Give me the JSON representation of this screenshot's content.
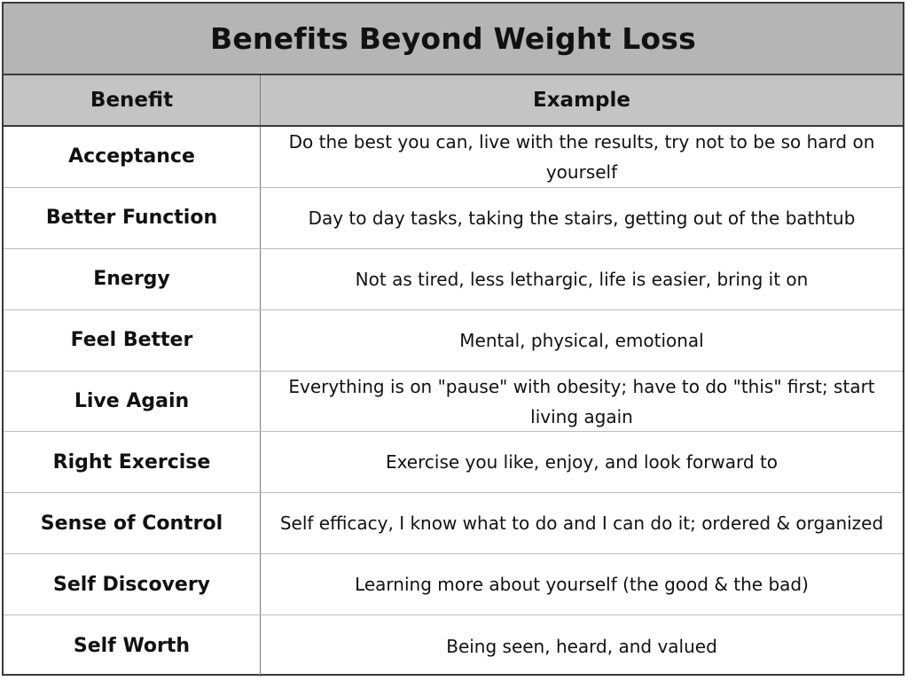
{
  "table": {
    "title": "Benefits Beyond Weight Loss",
    "columns": {
      "benefit": "Benefit",
      "example": "Example"
    },
    "rows": [
      {
        "benefit": "Acceptance",
        "example": "Do the best you can, live with the results, try not to be so hard on yourself"
      },
      {
        "benefit": "Better Function",
        "example": "Day to day tasks, taking the stairs, getting out of the bathtub"
      },
      {
        "benefit": "Energy",
        "example": "Not as tired, less lethargic, life is easier, bring it on"
      },
      {
        "benefit": "Feel Better",
        "example": "Mental, physical, emotional"
      },
      {
        "benefit": "Live Again",
        "example": "Everything is on \"pause\" with obesity; have to do \"this\" first; start living again"
      },
      {
        "benefit": "Right Exercise",
        "example": "Exercise you like, enjoy, and look forward to"
      },
      {
        "benefit": "Sense of Control",
        "example": "Self efficacy, I know what to do and I can do it; ordered & organized"
      },
      {
        "benefit": "Self Discovery",
        "example": "Learning more about yourself (the good & the bad)"
      },
      {
        "benefit": "Self Worth",
        "example": "Being seen, heard, and valued"
      }
    ]
  },
  "colors": {
    "title_background": "#b5b5b5",
    "header_background": "#c4c4c4",
    "border": "#3a3a3a"
  }
}
